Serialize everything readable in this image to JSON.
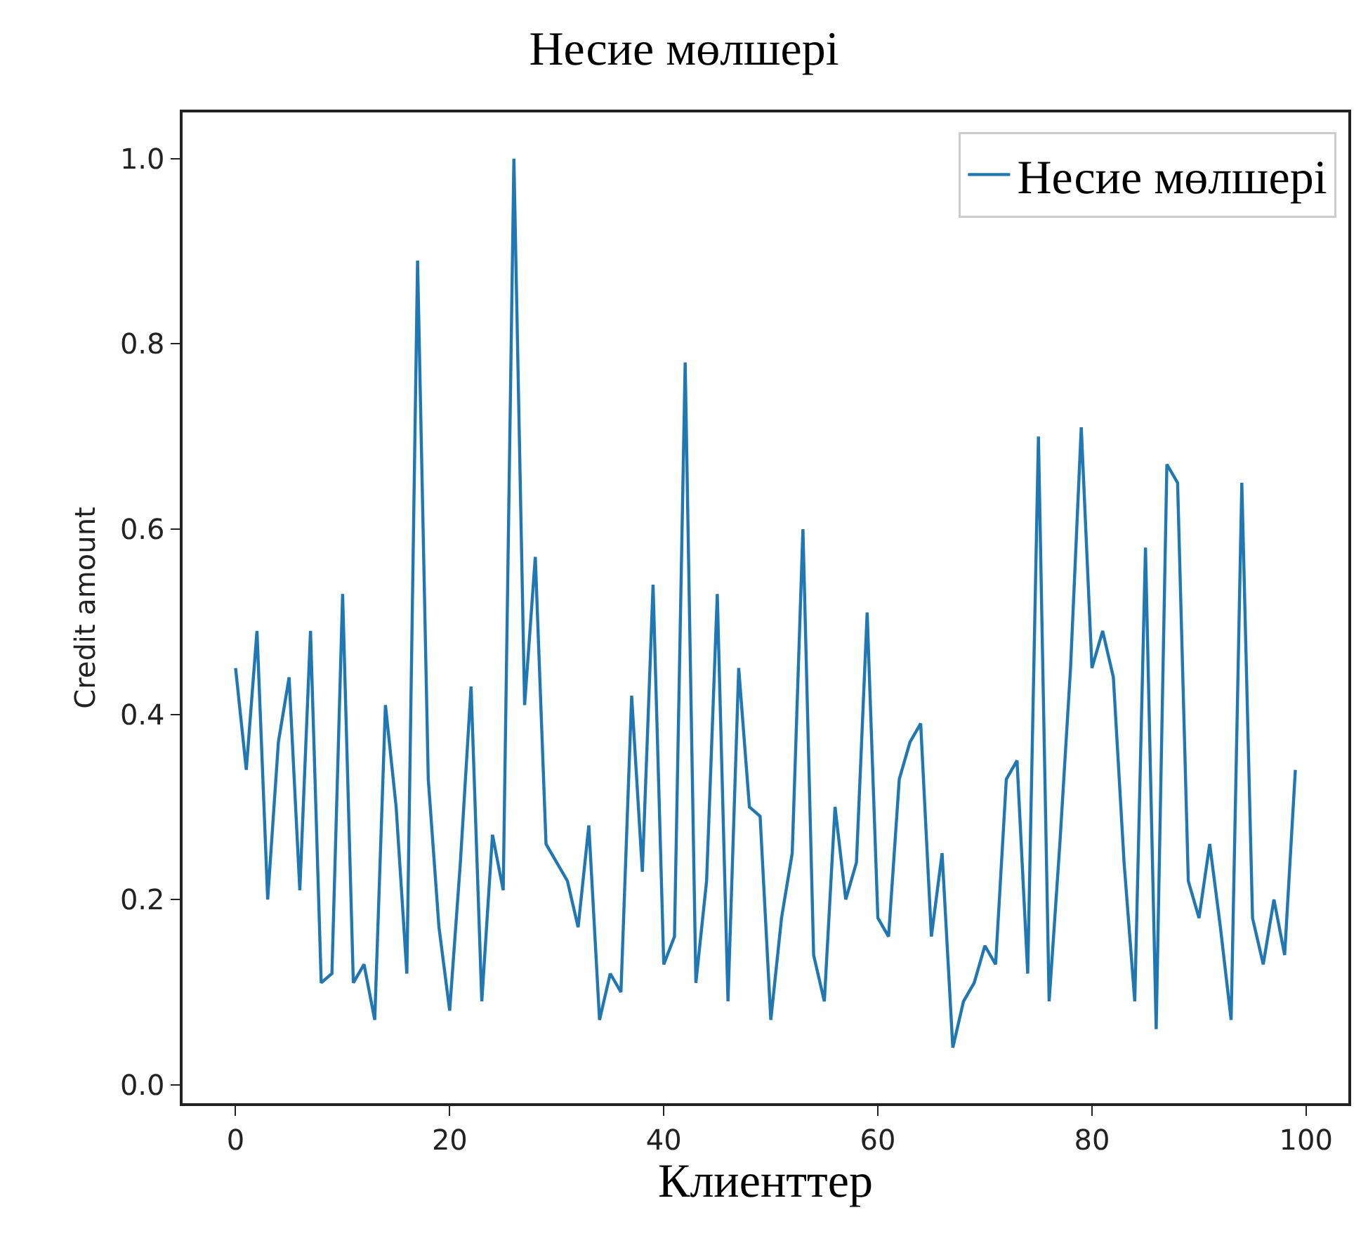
{
  "chart_data": {
    "type": "line",
    "title": "Несие мөлшері",
    "xlabel": "Клиенттер",
    "ylabel": "Credit amount",
    "x": [
      0,
      1,
      2,
      3,
      4,
      5,
      6,
      7,
      8,
      9,
      10,
      11,
      12,
      13,
      14,
      15,
      16,
      17,
      18,
      19,
      20,
      21,
      22,
      23,
      24,
      25,
      26,
      27,
      28,
      29,
      30,
      31,
      32,
      33,
      34,
      35,
      36,
      37,
      38,
      39,
      40,
      41,
      42,
      43,
      44,
      45,
      46,
      47,
      48,
      49,
      50,
      51,
      52,
      53,
      54,
      55,
      56,
      57,
      58,
      59,
      60,
      61,
      62,
      63,
      64,
      65,
      66,
      67,
      68,
      69,
      70,
      71,
      72,
      73,
      74,
      75,
      76,
      77,
      78,
      79,
      80,
      81,
      82,
      83,
      84,
      85,
      86,
      87,
      88,
      89,
      90,
      91,
      92,
      93,
      94,
      95,
      96,
      97,
      98,
      99
    ],
    "series": [
      {
        "name": "Несие мөлшері",
        "color": "#1f77b4",
        "values": [
          0.45,
          0.34,
          0.49,
          0.2,
          0.37,
          0.44,
          0.21,
          0.49,
          0.11,
          0.12,
          0.53,
          0.11,
          0.13,
          0.07,
          0.41,
          0.3,
          0.12,
          0.89,
          0.33,
          0.17,
          0.08,
          0.24,
          0.43,
          0.09,
          0.27,
          0.21,
          1.0,
          0.41,
          0.57,
          0.26,
          0.24,
          0.22,
          0.17,
          0.28,
          0.07,
          0.12,
          0.1,
          0.42,
          0.23,
          0.54,
          0.13,
          0.16,
          0.78,
          0.11,
          0.22,
          0.53,
          0.09,
          0.45,
          0.3,
          0.29,
          0.07,
          0.18,
          0.25,
          0.6,
          0.14,
          0.09,
          0.3,
          0.2,
          0.24,
          0.51,
          0.18,
          0.16,
          0.33,
          0.37,
          0.39,
          0.16,
          0.25,
          0.04,
          0.09,
          0.11,
          0.15,
          0.13,
          0.33,
          0.35,
          0.12,
          0.7,
          0.09,
          0.26,
          0.45,
          0.71,
          0.45,
          0.49,
          0.44,
          0.24,
          0.09,
          0.58,
          0.06,
          0.67,
          0.65,
          0.22,
          0.18,
          0.26,
          0.17,
          0.07,
          0.65,
          0.18,
          0.13,
          0.2,
          0.14,
          0.34
        ]
      }
    ],
    "xlim": [
      -4.95,
      103.95
    ],
    "ylim": [
      -0.02,
      1.05
    ],
    "xticks": [
      0,
      20,
      40,
      60,
      80,
      100
    ],
    "yticks": [
      {
        "value": 0,
        "label": "0.0"
      },
      0.2,
      0.4,
      0.6,
      0.8,
      {
        "value": 1,
        "label": "1.0"
      }
    ],
    "legend": "top right",
    "marker": "none",
    "line_style": "solid"
  }
}
